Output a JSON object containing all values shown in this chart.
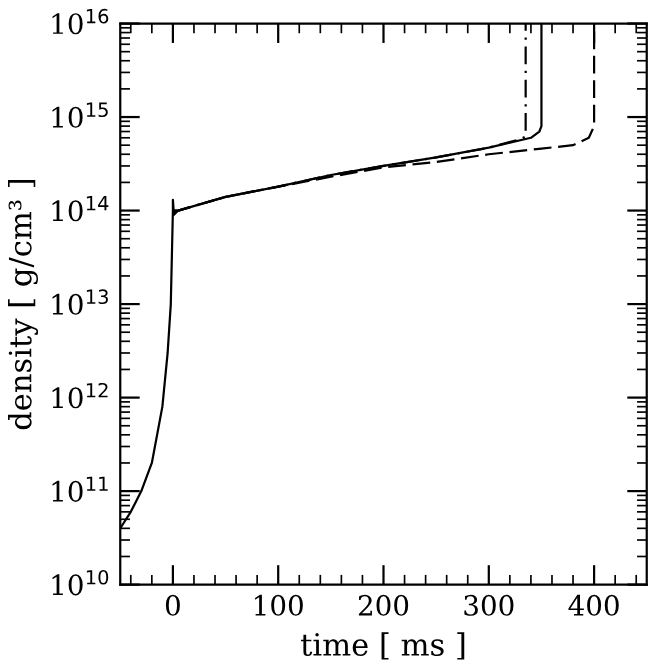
{
  "chart_data": {
    "type": "line",
    "xlabel": "time [ ms ]",
    "ylabel": "density [ g/cm³ ]",
    "log": "y",
    "grid": false,
    "legend": false,
    "marker": "none",
    "xlim": [
      -50,
      450
    ],
    "ylim": [
      10000000000.0,
      1e+16
    ],
    "xticks": [
      0,
      100,
      200,
      300,
      400
    ],
    "yticks": [
      {
        "value": 10000000000.0,
        "label": "10$^{10}$"
      },
      {
        "value": 100000000000.0,
        "label": "10$^{11}$"
      },
      {
        "value": 1000000000000.0,
        "label": "10$^{12}$"
      },
      {
        "value": 10000000000000.0,
        "label": "10$^{13}$"
      },
      {
        "value": 100000000000000.0,
        "label": "10$^{14}$"
      },
      {
        "value": 1000000000000000.0,
        "label": "10$^{15}$"
      },
      {
        "value": 1e+16,
        "label": "10$^{16}$"
      }
    ],
    "series": [
      {
        "color": "#000000",
        "line_style": "solid",
        "x": [
          -50,
          -40,
          -30,
          -20,
          -10,
          -5,
          -2,
          0,
          0,
          1,
          5,
          50,
          100,
          150,
          200,
          250,
          300,
          340,
          348,
          350,
          350
        ],
        "values": [
          40000000000.0,
          60000000000.0,
          100000000000.0,
          200000000000.0,
          800000000000.0,
          3000000000000.0,
          10000000000000.0,
          100000000000000.0,
          130000000000000.0,
          90000000000000.0,
          100000000000000.0,
          140000000000000.0,
          180000000000000.0,
          240000000000000.0,
          300000000000000.0,
          370000000000000.0,
          470000000000000.0,
          600000000000000.0,
          700000000000000.0,
          800000000000000.0,
          1e+16
        ]
      },
      {
        "color": "#000000",
        "line_style": "dashdot",
        "x": [
          0,
          5,
          50,
          100,
          150,
          200,
          250,
          300,
          330,
          335,
          335
        ],
        "values": [
          100000000000000.0,
          100000000000000.0,
          140000000000000.0,
          180000000000000.0,
          240000000000000.0,
          300000000000000.0,
          370000000000000.0,
          470000000000000.0,
          580000000000000.0,
          620000000000000.0,
          1e+16
        ]
      },
      {
        "color": "#000000",
        "line_style": "dashed",
        "x": [
          0,
          5,
          50,
          100,
          150,
          200,
          250,
          300,
          350,
          380,
          395,
          400,
          400
        ],
        "values": [
          100000000000000.0,
          100000000000000.0,
          140000000000000.0,
          180000000000000.0,
          230000000000000.0,
          290000000000000.0,
          330000000000000.0,
          400000000000000.0,
          460000000000000.0,
          500000000000000.0,
          600000000000000.0,
          800000000000000.0,
          1e+16
        ]
      }
    ]
  }
}
